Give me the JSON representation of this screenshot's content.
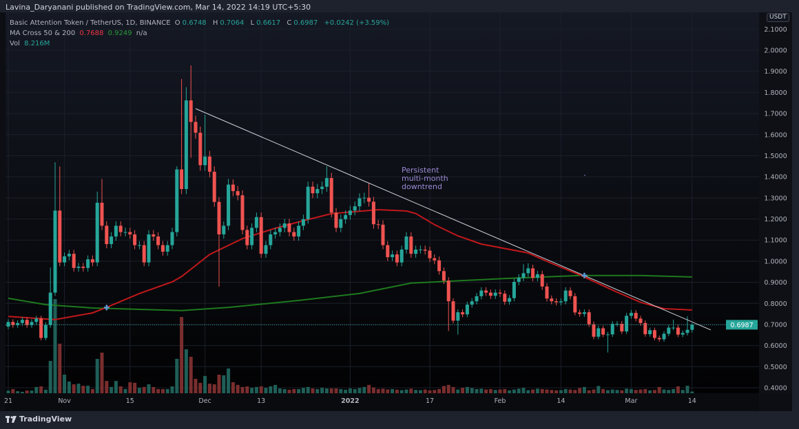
{
  "publisher": "Lavina_Daryanani published on TradingView.com, Mar 14, 2022 14:19 UTC+5:30",
  "legend": {
    "symbol": "Basic Attention Token / TetherUS, 1D, BINANCE",
    "o_label": "O",
    "o": "0.6748",
    "h_label": "H",
    "h": "0.7064",
    "l_label": "L",
    "l": "0.6617",
    "c_label": "C",
    "c": "0.6987",
    "change": "+0.0242 (+3.59%)",
    "ma_name": "MA Cross 50 & 200",
    "ma50": "0.7688",
    "ma200": "0.9249",
    "ma_extra": "n/a",
    "vol_name": "Vol",
    "vol": "8.216M"
  },
  "currency_badge": "USDT",
  "last_price_label": "0.6987",
  "annotation": "Persistent\nmulti-month\ndowntrend",
  "footer": {
    "brand": "TradingView"
  },
  "colors": {
    "up": "#26a69a",
    "down": "#ef5350",
    "ma50": "#c2181b",
    "ma200": "#1e7a1e",
    "trendline": "#d1d4dc",
    "annotation": "#9c8ad6"
  },
  "chart_data": {
    "type": "candlestick",
    "price_axis": {
      "ticks": [
        "2.1000",
        "2.0000",
        "1.9000",
        "1.8000",
        "1.7000",
        "1.6000",
        "1.5000",
        "1.4000",
        "1.3000",
        "1.2000",
        "1.1000",
        "1.0000",
        "0.9000",
        "0.8000",
        "0.7000",
        "0.6000",
        "0.5000",
        "0.4000"
      ],
      "range": [
        0.38,
        2.11
      ]
    },
    "time_axis": [
      {
        "label": "21",
        "index": 0
      },
      {
        "label": "Nov",
        "index": 12
      },
      {
        "label": "15",
        "index": 26
      },
      {
        "label": "Dec",
        "index": 42
      },
      {
        "label": "13",
        "index": 54
      },
      {
        "label": "2022",
        "index": 73
      },
      {
        "label": "17",
        "index": 90
      },
      {
        "label": "Feb",
        "index": 105
      },
      {
        "label": "14",
        "index": 118
      },
      {
        "label": "Mar",
        "index": 133
      },
      {
        "label": "14",
        "index": 146
      }
    ],
    "first_open": 0.69,
    "close": [
      0.712,
      0.697,
      0.707,
      0.722,
      0.697,
      0.712,
      0.728,
      0.636,
      0.697,
      0.851,
      1.24,
      0.994,
      1.023,
      1.035,
      0.968,
      0.974,
      0.968,
      1.009,
      0.994,
      1.277,
      1.168,
      1.081,
      1.117,
      1.168,
      1.138,
      1.138,
      1.127,
      1.076,
      1.076,
      0.994,
      1.127,
      1.117,
      1.076,
      1.045,
      1.076,
      1.138,
      1.435,
      1.342,
      1.762,
      1.66,
      1.609,
      1.455,
      1.496,
      1.424,
      1.281,
      1.127,
      1.168,
      1.363,
      1.332,
      1.312,
      1.148,
      1.076,
      1.158,
      1.209,
      1.035,
      1.076,
      1.127,
      1.138,
      1.158,
      1.179,
      1.138,
      1.117,
      1.168,
      1.199,
      1.353,
      1.322,
      1.342,
      1.353,
      1.394,
      1.23,
      1.158,
      1.199,
      1.219,
      1.24,
      1.26,
      1.298,
      1.301,
      1.282,
      1.175,
      1.173,
      1.076,
      1.019,
      1.032,
      0.994,
      1.055,
      1.117,
      1.035,
      1.055,
      1.055,
      1.05,
      1.014,
      1.004,
      0.953,
      0.908,
      0.81,
      0.718,
      0.758,
      0.748,
      0.794,
      0.81,
      0.834,
      0.861,
      0.851,
      0.836,
      0.851,
      0.846,
      0.808,
      0.825,
      0.902,
      0.922,
      0.943,
      0.966,
      0.921,
      0.938,
      0.88,
      0.823,
      0.81,
      0.805,
      0.81,
      0.861,
      0.834,
      0.757,
      0.75,
      0.758,
      0.701,
      0.642,
      0.682,
      0.652,
      0.653,
      0.703,
      0.703,
      0.667,
      0.741,
      0.755,
      0.728,
      0.707,
      0.654,
      0.673,
      0.636,
      0.63,
      0.656,
      0.685,
      0.685,
      0.652,
      0.66,
      0.6748,
      0.6987
    ],
    "wick_extremes": {
      "9": {
        "high": 0.97
      },
      "10": {
        "high": 1.469
      },
      "11": {
        "high": 1.449
      },
      "19": {
        "high": 1.33
      },
      "20": {
        "high": 1.39
      },
      "36": {
        "high": 1.45
      },
      "37": {
        "high": 1.863
      },
      "38": {
        "high": 1.825
      },
      "39": {
        "high": 1.928,
        "low": 1.49
      },
      "42": {
        "high": 1.694
      },
      "45": {
        "low": 0.879
      },
      "47": {
        "high": 1.39
      },
      "68": {
        "high": 1.45
      },
      "77": {
        "high": 1.37
      },
      "94": {
        "low": 0.669
      },
      "96": {
        "low": 0.652
      },
      "110": {
        "high": 0.986
      },
      "111": {
        "high": 0.99
      },
      "128": {
        "low": 0.567
      },
      "142": {
        "high": 0.723
      },
      "145": {
        "high": 0.739
      },
      "146": {
        "high": 0.7064,
        "low": 0.6617
      }
    },
    "volume_m": [
      13,
      20,
      10,
      7,
      13,
      13,
      30,
      33,
      17,
      155,
      452,
      238,
      89,
      56,
      43,
      46,
      36,
      36,
      20,
      165,
      195,
      59,
      30,
      59,
      33,
      20,
      53,
      50,
      26,
      30,
      43,
      30,
      20,
      20,
      20,
      33,
      165,
      366,
      211,
      175,
      69,
      50,
      83,
      46,
      43,
      89,
      86,
      119,
      53,
      40,
      30,
      33,
      26,
      30,
      33,
      26,
      33,
      40,
      23,
      20,
      17,
      20,
      20,
      26,
      30,
      23,
      20,
      26,
      23,
      23,
      23,
      20,
      17,
      23,
      20,
      25,
      30,
      40,
      28,
      20,
      22,
      18,
      20,
      17,
      15,
      18,
      22,
      16,
      15,
      18,
      14,
      16,
      20,
      35,
      40,
      30,
      18,
      26,
      30,
      25,
      20,
      22,
      18,
      20,
      16,
      18,
      20,
      14,
      18,
      22,
      26,
      15,
      18,
      22,
      20,
      18,
      16,
      14,
      15,
      20,
      18,
      16,
      25,
      30,
      14,
      18,
      35,
      20,
      15,
      18,
      16,
      14,
      22,
      20,
      16,
      18,
      20,
      14,
      16,
      30,
      18,
      16,
      20,
      33,
      16,
      36,
      8.216
    ],
    "ma50": [
      [
        0,
        0.738
      ],
      [
        10,
        0.723
      ],
      [
        18,
        0.755
      ],
      [
        21,
        0.781
      ],
      [
        28,
        0.847
      ],
      [
        35,
        0.902
      ],
      [
        37,
        0.927
      ],
      [
        43,
        1.032
      ],
      [
        50,
        1.107
      ],
      [
        57,
        1.156
      ],
      [
        63,
        1.192
      ],
      [
        69,
        1.225
      ],
      [
        79,
        1.244
      ],
      [
        85,
        1.238
      ],
      [
        87,
        1.226
      ],
      [
        91,
        1.173
      ],
      [
        96,
        1.12
      ],
      [
        101,
        1.081
      ],
      [
        111,
        1.039
      ],
      [
        116,
        0.99
      ],
      [
        122,
        0.935
      ],
      [
        130,
        0.853
      ],
      [
        135,
        0.805
      ],
      [
        140,
        0.775
      ],
      [
        146,
        0.7688
      ]
    ],
    "ma200": [
      [
        0,
        0.824
      ],
      [
        8,
        0.794
      ],
      [
        18,
        0.778
      ],
      [
        37,
        0.766
      ],
      [
        47,
        0.781
      ],
      [
        62,
        0.814
      ],
      [
        75,
        0.847
      ],
      [
        86,
        0.896
      ],
      [
        106,
        0.918
      ],
      [
        122,
        0.932
      ],
      [
        135,
        0.932
      ],
      [
        146,
        0.9249
      ]
    ],
    "ma_crosses": [
      [
        21,
        0.78
      ],
      [
        123,
        0.932
      ]
    ],
    "trendline": [
      [
        40,
        1.723
      ],
      [
        150,
        0.674
      ]
    ]
  }
}
